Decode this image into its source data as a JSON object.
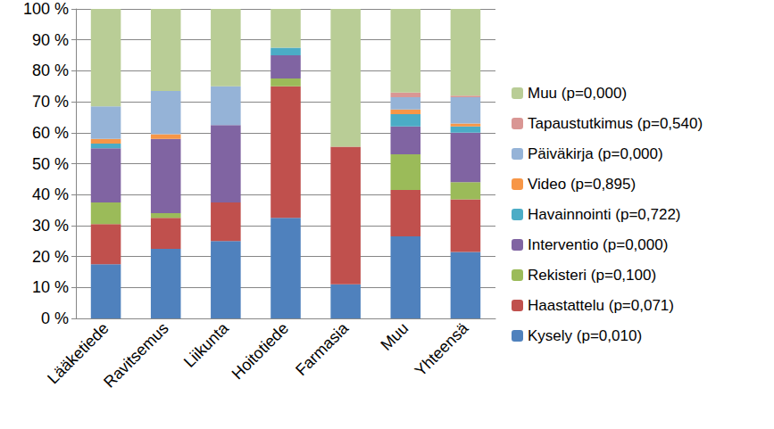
{
  "chart_data": {
    "type": "bar",
    "stacked": true,
    "grid": true,
    "legend": "right",
    "categories": [
      "Lääketiede",
      "Ravitsemus",
      "Liikunta",
      "Hoitotiede",
      "Farmasia",
      "Muu",
      "Yhteensä"
    ],
    "ylim": [
      0,
      100
    ],
    "yticks": [
      {
        "value": 0,
        "label": "0 %"
      },
      {
        "value": 10,
        "label": "10 %"
      },
      {
        "value": 20,
        "label": "20 %"
      },
      {
        "value": 30,
        "label": "30 %"
      },
      {
        "value": 40,
        "label": "40 %"
      },
      {
        "value": 50,
        "label": "50 %"
      },
      {
        "value": 60,
        "label": "60 %"
      },
      {
        "value": 70,
        "label": "70 %"
      },
      {
        "value": 80,
        "label": "80 %"
      },
      {
        "value": 90,
        "label": "90 %"
      },
      {
        "value": 100,
        "label": "100 %"
      }
    ],
    "series": [
      {
        "name": "Kysely (p=0,010)",
        "color": "#4f81bd",
        "values": [
          17.5,
          22.5,
          25,
          32.5,
          11,
          26.5,
          21.5
        ]
      },
      {
        "name": "Haastattelu (p=0,071)",
        "color": "#c0504d",
        "values": [
          13,
          10,
          12.5,
          42.5,
          44.5,
          15,
          17
        ]
      },
      {
        "name": "Rekisteri (p=0,100)",
        "color": "#9bbb59",
        "values": [
          7,
          1.5,
          0,
          2.5,
          0,
          11.5,
          5.5
        ]
      },
      {
        "name": "Interventio (p=0,000)",
        "color": "#8064a2",
        "values": [
          17.5,
          24,
          25,
          7.5,
          0,
          9,
          16
        ]
      },
      {
        "name": "Havainnointi (p=0,722)",
        "color": "#4bacc6",
        "values": [
          1.5,
          0,
          0,
          2.5,
          0,
          4,
          2
        ]
      },
      {
        "name": "Video (p=0,895)",
        "color": "#f79646",
        "values": [
          1.5,
          1.5,
          0,
          0,
          0,
          1.5,
          1
        ]
      },
      {
        "name": "Päiväkirja (p=0,000)",
        "color": "#95b3d7",
        "values": [
          10.5,
          14,
          12.5,
          0,
          0,
          4,
          8.5
        ]
      },
      {
        "name": "Tapaustutkimus (p=0,540)",
        "color": "#d99694",
        "values": [
          0,
          0,
          0,
          0,
          0,
          1.5,
          0.5
        ]
      },
      {
        "name": "Muu (p=0,000)",
        "color": "#b9cd96",
        "values": [
          31.5,
          26.5,
          25,
          12.5,
          44.5,
          27,
          28
        ]
      }
    ]
  }
}
